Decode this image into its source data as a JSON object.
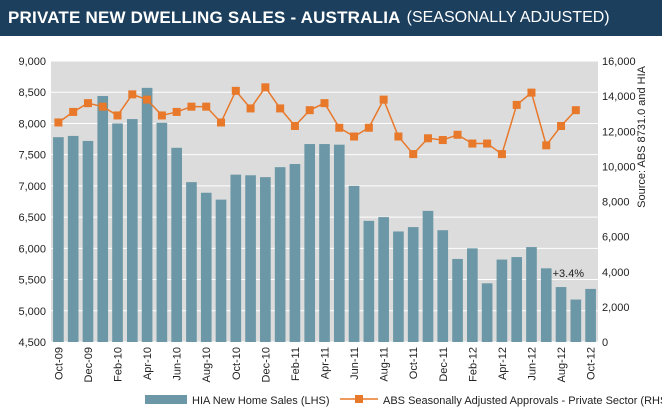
{
  "header": {
    "title": "PRIVATE NEW DWELLING SALES -  AUSTRALIA",
    "subtitle": "(SEASONALLY ADJUSTED)"
  },
  "chart_data": {
    "type": "bar+line",
    "source_note": "Source: ABS 8731.0 and HIA",
    "categories": [
      "Oct-09",
      "Nov-09",
      "Dec-09",
      "Jan-10",
      "Feb-10",
      "Mar-10",
      "Apr-10",
      "May-10",
      "Jun-10",
      "Jul-10",
      "Aug-10",
      "Sep-10",
      "Oct-10",
      "Nov-10",
      "Dec-10",
      "Jan-11",
      "Feb-11",
      "Mar-11",
      "Apr-11",
      "May-11",
      "Jun-11",
      "Jul-11",
      "Aug-11",
      "Sep-11",
      "Oct-11",
      "Nov-11",
      "Dec-11",
      "Jan-12",
      "Feb-12",
      "Mar-12",
      "Apr-12",
      "May-12",
      "Jun-12",
      "Jul-12",
      "Aug-12",
      "Sep-12",
      "Oct-12"
    ],
    "x_tick_labels": [
      "Oct-09",
      "Dec-09",
      "Feb-10",
      "Apr-10",
      "Jun-10",
      "Aug-10",
      "Oct-10",
      "Dec-10",
      "Feb-11",
      "Apr-11",
      "Jun-11",
      "Aug-11",
      "Oct-11",
      "Dec-11",
      "Feb-12",
      "Apr-12",
      "Jun-12",
      "Aug-12",
      "Oct-12"
    ],
    "series": [
      {
        "name": "HIA New Home Sales (LHS)",
        "kind": "bar",
        "axis": "left",
        "color": "#6b97a6",
        "values": [
          7780,
          7800,
          7720,
          8440,
          8000,
          8070,
          8570,
          8010,
          7610,
          7060,
          6890,
          6780,
          7180,
          7170,
          7140,
          7300,
          7350,
          7670,
          7670,
          7660,
          7000,
          6440,
          6500,
          6270,
          6340,
          6600,
          6290,
          5830,
          6000,
          5440,
          5820,
          5860,
          6020,
          5680,
          5380,
          5180,
          5350
        ]
      },
      {
        "name": "ABS Seasonally Adjusted Approvals - Private Sector (RHS)",
        "kind": "line",
        "axis": "right",
        "color": "#e8782a",
        "values": [
          12500,
          13100,
          13600,
          13400,
          12900,
          14100,
          13800,
          12900,
          13100,
          13400,
          13400,
          12500,
          14300,
          13300,
          14500,
          13300,
          12300,
          13200,
          13600,
          12200,
          11700,
          12200,
          13800,
          11700,
          10700,
          11600,
          11500,
          11800,
          11300,
          11300,
          10700,
          13500,
          14200,
          11200,
          12300,
          13200,
          null
        ]
      }
    ],
    "y_left": {
      "min": 4500,
      "max": 9000,
      "step": 500,
      "tick_labels": [
        "4,500",
        "5,000",
        "5,500",
        "6,000",
        "6,500",
        "7,000",
        "7,500",
        "8,000",
        "8,500",
        "9,000"
      ]
    },
    "y_right": {
      "min": 0,
      "max": 16000,
      "step": 2000,
      "tick_labels": [
        "0",
        "2,000",
        "4,000",
        "6,000",
        "8,000",
        "10,000",
        "12,000",
        "14,000",
        "16,000"
      ]
    },
    "annotation": "+3.4%",
    "grid": true,
    "legend_position": "bottom"
  }
}
